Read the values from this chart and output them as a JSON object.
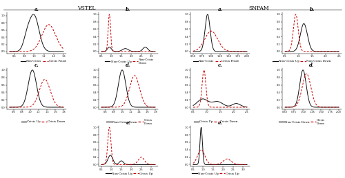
{
  "title_left": "VSTEL",
  "title_right": "SNPAM",
  "background": "#ffffff",
  "subplot_titles_row1": [
    "a.",
    "b.",
    "a.",
    "b."
  ],
  "subplot_titles_row2": [
    "c.",
    "d.",
    "c.",
    "d."
  ],
  "subplot_titles_row3": [
    "e.",
    "e."
  ],
  "legends_row1": [
    [
      "Non-Crisis",
      "Crisis Priod"
    ],
    [
      "Non-Crisis Up",
      "Non-Crisis\nDown"
    ],
    [
      "Non-Crisis",
      "Crisis Priod"
    ],
    [
      "Non-Crisis Up",
      "Non-Crisis Down"
    ]
  ],
  "legends_row2": [
    [
      "Crisis Up",
      "Crisis Down"
    ],
    [
      "Non-Crisis Down",
      "Crisis\nDown"
    ],
    [
      "Crisis Up",
      "Crisis Down"
    ],
    [
      "Non-Crisis Down",
      "Crisis\nDown"
    ]
  ],
  "legends_row3": [
    [
      "Non-Crisis Up",
      "Crisis Up"
    ],
    [
      "Non-Crisis Up",
      "Crisis Up"
    ]
  ],
  "line_solid_color": "#111111",
  "line_dashed_color": "#cc0000",
  "lw_solid": 0.7,
  "lw_dashed": 0.7
}
